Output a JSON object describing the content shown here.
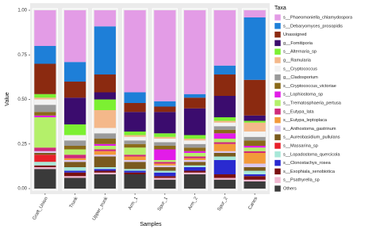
{
  "chart_data": {
    "type": "stacked_bar",
    "x_label": "Samples",
    "y_label": "Value",
    "legend_title": "Taxa",
    "categories": [
      "Graft_Union",
      "Trunk",
      "Upper_trunk",
      "Arm_1",
      "Spur_1",
      "Arm_2",
      "Spur_2",
      "Canes"
    ],
    "ylim": [
      0,
      1
    ],
    "yticks": [
      {
        "value": 0,
        "label": "0.00"
      },
      {
        "value": 0.25,
        "label": "0.25"
      },
      {
        "value": 0.5,
        "label": "0.50"
      },
      {
        "value": 0.75,
        "label": "0.75"
      },
      {
        "value": 1,
        "label": "1.00"
      }
    ],
    "series": [
      {
        "name": "s__Phaeomoniella_chlamydospora",
        "color": "#e39ce6",
        "values": [
          0.2,
          0.29,
          0.09,
          0.46,
          0.51,
          0.47,
          0.31,
          0.04
        ]
      },
      {
        "name": "s__Debaryomyces_prosopidis",
        "color": "#1e7fd8",
        "values": [
          0.1,
          0.11,
          0.27,
          0.06,
          0.03,
          0.02,
          0.05,
          0.35
        ]
      },
      {
        "name": "Unassigned",
        "color": "#8b2a10",
        "values": [
          0.17,
          0.09,
          0.1,
          0.05,
          0.03,
          0.06,
          0.12,
          0.2
        ]
      },
      {
        "name": "g__Fomitiporia",
        "color": "#3b0c6e",
        "values": [
          0,
          0.15,
          0.04,
          0.11,
          0.12,
          0.15,
          0.12,
          0.03
        ]
      },
      {
        "name": "s__Alternaria_sp",
        "color": "#7cf032",
        "values": [
          0.02,
          0.06,
          0.06,
          0.02,
          0.02,
          0.02,
          0.02,
          0.01
        ]
      },
      {
        "name": "g__Ramularia",
        "color": "#f4b88a",
        "values": [
          0.01,
          0,
          0.1,
          0.01,
          0.01,
          0.01,
          0.01,
          0.05
        ]
      },
      {
        "name": "s__Cryptococcus",
        "color": "#f2f2f2",
        "values": [
          0.03,
          0.03,
          0.03,
          0.02,
          0.02,
          0.02,
          0.02,
          0.03
        ]
      },
      {
        "name": "g__Cladosporium",
        "color": "#9a9a9a",
        "values": [
          0.04,
          0.03,
          0.03,
          0.02,
          0.02,
          0.02,
          0.02,
          0.02
        ]
      },
      {
        "name": "s__Cryptococcus_victoriae",
        "color": "#8b6a1a",
        "values": [
          0.02,
          0.02,
          0.03,
          0.02,
          0.02,
          0.02,
          0.02,
          0.03
        ]
      },
      {
        "name": "s__Lophiostoma_sp",
        "color": "#e21ce8",
        "values": [
          0.01,
          0,
          0.01,
          0,
          0.06,
          0.01,
          0.03,
          0.01
        ]
      },
      {
        "name": "s__Trematosphaeria_pertusa",
        "color": "#b4f06a",
        "values": [
          0.17,
          0.03,
          0.02,
          0.04,
          0.01,
          0.02,
          0.02,
          0.02
        ]
      },
      {
        "name": "s__Eutypa_lata",
        "color": "#cf2a7a",
        "values": [
          0.02,
          0.02,
          0.01,
          0.01,
          0.01,
          0.01,
          0.01,
          0.01
        ]
      },
      {
        "name": "s__Eutypa_leptoplaca",
        "color": "#f39a3a",
        "values": [
          0,
          0.01,
          0.02,
          0.02,
          0.01,
          0.01,
          0.04,
          0.06
        ]
      },
      {
        "name": "s__Anthostoma_gastrinum",
        "color": "#d9c8f0",
        "values": [
          0.01,
          0.01,
          0.01,
          0.01,
          0.01,
          0.01,
          0.01,
          0.02
        ]
      },
      {
        "name": "s__Aureobasidium_pullulans",
        "color": "#7a5a1e",
        "values": [
          0.01,
          0.03,
          0.06,
          0.04,
          0.02,
          0.02,
          0.02,
          0.02
        ]
      },
      {
        "name": "s__Massarina_sp",
        "color": "#e8202a",
        "values": [
          0.04,
          0,
          0,
          0,
          0,
          0,
          0,
          0
        ]
      },
      {
        "name": "s__Lopadostoma_quercicola",
        "color": "#a8e8d8",
        "values": [
          0.02,
          0.02,
          0.01,
          0.01,
          0.01,
          0.01,
          0.02,
          0.02
        ]
      },
      {
        "name": "s__Clonostachys_rosea",
        "color": "#2a2ad0",
        "values": [
          0,
          0.01,
          0.01,
          0.01,
          0.02,
          0.02,
          0.08,
          0.01
        ]
      },
      {
        "name": "s__Exophiala_xenobiotica",
        "color": "#7a1010",
        "values": [
          0.01,
          0.02,
          0.01,
          0.01,
          0.01,
          0.01,
          0.02,
          0.02
        ]
      },
      {
        "name": "s__Psathyrella_sp",
        "color": "#f0b8d0",
        "values": [
          0.01,
          0.01,
          0.01,
          0,
          0.01,
          0.01,
          0.01,
          0.01
        ]
      },
      {
        "name": "Others",
        "color": "#3a3a3a",
        "values": [
          0.11,
          0.06,
          0.08,
          0.08,
          0.05,
          0.08,
          0.05,
          0.04
        ]
      }
    ]
  }
}
